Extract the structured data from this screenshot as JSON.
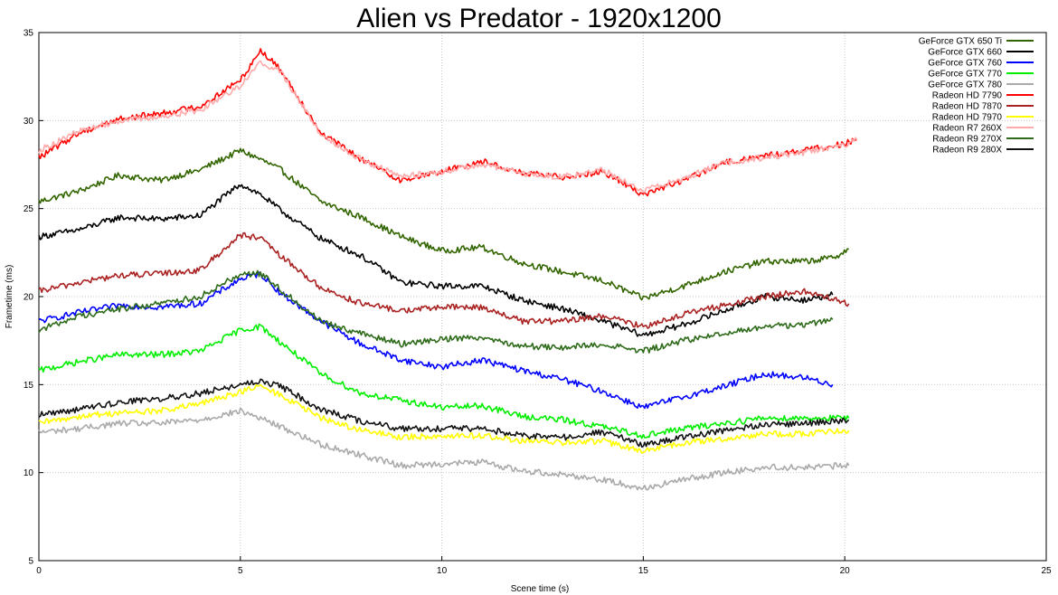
{
  "chart_data": {
    "type": "line",
    "title": "Alien vs Predator - 1920x1200",
    "xlabel": "Scene time (s)",
    "ylabel": "Frametime (ms)",
    "xlim": [
      0,
      25
    ],
    "ylim": [
      5,
      35
    ],
    "xticks": [
      0,
      5,
      10,
      15,
      20,
      25
    ],
    "yticks": [
      5,
      10,
      15,
      20,
      25,
      30,
      35
    ],
    "grid": true,
    "legend_position": "top-right",
    "series": [
      {
        "name": "GeForce GTX 650 Ti",
        "color": "#336600",
        "x": [
          0,
          1,
          2,
          3,
          4,
          5,
          5.5,
          6,
          7,
          8,
          9,
          10,
          11,
          12,
          13,
          14,
          15,
          16,
          17,
          18,
          19,
          19.7,
          20.1
        ],
        "y": [
          25.4,
          26.0,
          26.9,
          26.6,
          27.2,
          28.3,
          27.8,
          27.2,
          25.4,
          24.5,
          23.4,
          22.6,
          22.8,
          21.9,
          21.4,
          20.9,
          19.9,
          20.6,
          21.4,
          22.0,
          22.0,
          22.2,
          22.7
        ]
      },
      {
        "name": "GeForce GTX 660",
        "color": "#000000",
        "x": [
          0,
          1,
          2,
          3,
          4,
          5,
          5.5,
          6,
          7,
          8,
          9,
          10,
          11,
          12,
          13,
          14,
          15,
          16,
          17,
          18,
          19,
          19.7
        ],
        "y": [
          23.4,
          23.8,
          24.5,
          24.4,
          24.6,
          26.4,
          25.8,
          24.9,
          23.3,
          22.3,
          20.8,
          20.6,
          20.6,
          19.8,
          19.3,
          18.6,
          17.8,
          18.4,
          19.2,
          20.0,
          19.8,
          20.1
        ]
      },
      {
        "name": "GeForce GTX 760",
        "color": "#0000ff",
        "x": [
          0,
          1,
          2,
          3,
          4,
          5,
          5.5,
          6,
          7,
          8,
          9,
          10,
          11,
          12,
          13,
          14,
          15,
          16,
          17,
          18,
          19,
          19.7
        ],
        "y": [
          18.6,
          19.1,
          19.5,
          19.4,
          19.6,
          21.0,
          21.3,
          20.2,
          18.6,
          17.3,
          16.4,
          16.0,
          16.4,
          15.8,
          15.3,
          14.6,
          13.7,
          14.3,
          14.9,
          15.6,
          15.4,
          15.0
        ]
      },
      {
        "name": "GeForce GTX 770",
        "color": "#00ee00",
        "x": [
          0,
          1,
          2,
          3,
          4,
          5,
          5.5,
          6,
          7,
          8,
          9,
          10,
          11,
          12,
          13,
          14,
          15,
          16,
          17,
          18,
          19,
          20.1
        ],
        "y": [
          15.8,
          16.3,
          16.7,
          16.7,
          16.9,
          18.1,
          18.3,
          17.4,
          15.6,
          14.5,
          14.1,
          13.7,
          13.8,
          13.2,
          13.0,
          12.6,
          12.1,
          12.5,
          12.8,
          13.1,
          13.1,
          13.1
        ]
      },
      {
        "name": "GeForce GTX 780",
        "color": "#aaaaaa",
        "x": [
          0,
          1,
          2,
          3,
          4,
          5,
          5.5,
          6,
          7,
          8,
          9,
          10,
          11,
          12,
          13,
          14,
          15,
          16,
          17,
          18,
          19,
          20.1
        ],
        "y": [
          12.3,
          12.5,
          12.8,
          12.8,
          13.0,
          13.5,
          13.1,
          12.6,
          11.6,
          11.0,
          10.4,
          10.5,
          10.6,
          10.1,
          9.9,
          9.6,
          9.1,
          9.6,
          10.0,
          10.3,
          10.3,
          10.4
        ]
      },
      {
        "name": "Radeon HD 7790",
        "color": "#ff0000",
        "x": [
          0,
          1,
          2,
          3,
          4,
          5,
          5.5,
          6,
          7,
          8,
          9,
          10,
          11,
          12,
          13,
          14,
          15,
          16,
          17,
          18,
          19,
          20,
          20.3
        ],
        "y": [
          27.9,
          29.3,
          30.1,
          30.4,
          30.8,
          32.3,
          34.0,
          32.9,
          29.3,
          27.8,
          26.6,
          27.1,
          27.7,
          27.0,
          26.8,
          27.1,
          25.8,
          26.6,
          27.6,
          28.0,
          28.3,
          28.7,
          28.9
        ]
      },
      {
        "name": "Radeon HD 7870",
        "color": "#aa2222",
        "x": [
          0,
          1,
          2,
          3,
          4,
          5,
          5.5,
          6,
          7,
          8,
          9,
          10,
          11,
          12,
          13,
          14,
          15,
          16,
          17,
          18,
          19,
          20.1
        ],
        "y": [
          20.3,
          20.8,
          21.2,
          21.3,
          21.5,
          23.5,
          23.3,
          22.3,
          20.5,
          19.6,
          19.2,
          19.4,
          19.4,
          18.6,
          18.6,
          18.9,
          18.3,
          19.0,
          19.5,
          20.0,
          20.3,
          19.6
        ]
      },
      {
        "name": "Radeon HD 7970",
        "color": "#ffff00",
        "x": [
          0,
          1,
          2,
          3,
          4,
          5,
          5.5,
          6,
          7,
          8,
          9,
          10,
          11,
          12,
          13,
          14,
          15,
          16,
          17,
          18,
          19,
          20.1
        ],
        "y": [
          12.8,
          13.2,
          13.4,
          13.5,
          13.9,
          14.6,
          14.9,
          14.4,
          13.1,
          12.4,
          12.0,
          12.1,
          12.1,
          11.8,
          11.7,
          11.8,
          11.2,
          11.7,
          11.9,
          12.2,
          12.2,
          12.4
        ]
      },
      {
        "name": "Radeon R7 260X",
        "color": "#ffaaaa",
        "x": [
          0,
          1,
          2,
          3,
          4,
          5,
          5.5,
          6,
          7,
          8,
          9,
          10,
          11,
          12,
          13,
          14,
          15,
          16,
          17,
          18,
          19,
          20,
          20.3
        ],
        "y": [
          28.3,
          29.4,
          30.0,
          30.2,
          30.6,
          32.0,
          33.3,
          32.8,
          29.2,
          27.8,
          26.8,
          27.1,
          27.5,
          27.0,
          26.8,
          27.2,
          26.0,
          26.7,
          27.6,
          27.9,
          28.2,
          28.6,
          28.9
        ]
      },
      {
        "name": "Radeon R9 270X",
        "color": "#2e6b1a",
        "x": [
          0,
          1,
          2,
          3,
          4,
          5,
          5.5,
          6,
          7,
          8,
          9,
          10,
          11,
          12,
          13,
          14,
          15,
          16,
          17,
          18,
          19,
          19.7
        ],
        "y": [
          18.1,
          18.9,
          19.3,
          19.6,
          20.0,
          21.3,
          21.3,
          20.4,
          18.6,
          17.9,
          17.3,
          17.6,
          17.7,
          17.2,
          17.1,
          17.3,
          16.9,
          17.5,
          17.9,
          18.3,
          18.4,
          18.7
        ]
      },
      {
        "name": "Radeon R9 280X",
        "color": "#111111",
        "x": [
          0,
          1,
          2,
          3,
          4,
          5,
          5.5,
          6,
          7,
          8,
          9,
          10,
          11,
          12,
          13,
          14,
          15,
          16,
          17,
          18,
          19,
          20.1
        ],
        "y": [
          13.3,
          13.6,
          14.0,
          14.2,
          14.5,
          15.0,
          15.2,
          14.9,
          13.6,
          12.9,
          12.5,
          12.5,
          12.5,
          12.1,
          12.0,
          12.3,
          11.6,
          12.0,
          12.4,
          12.7,
          12.8,
          13.0
        ]
      }
    ]
  }
}
